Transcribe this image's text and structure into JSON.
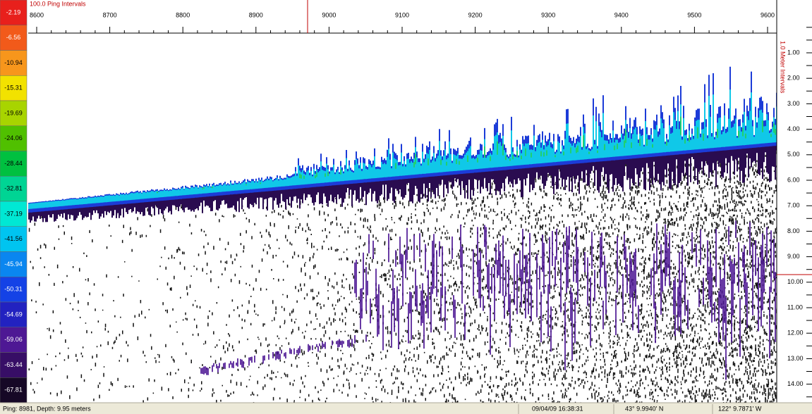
{
  "color_scale": [
    {
      "label": "-2.19",
      "color": "#e8201c"
    },
    {
      "label": "-6.56",
      "color": "#f25a1a"
    },
    {
      "label": "-10.94",
      "color": "#f7961c"
    },
    {
      "label": "-15.31",
      "color": "#f2e200"
    },
    {
      "label": "-19.69",
      "color": "#a8d400"
    },
    {
      "label": "-24.06",
      "color": "#50c000"
    },
    {
      "label": "-28.44",
      "color": "#00c040"
    },
    {
      "label": "-32.81",
      "color": "#00d494"
    },
    {
      "label": "-37.19",
      "color": "#00e8d4"
    },
    {
      "label": "-41.56",
      "color": "#00c4f0"
    },
    {
      "label": "-45.94",
      "color": "#0a86f0"
    },
    {
      "label": "-50.31",
      "color": "#1442e6"
    },
    {
      "label": "-54.69",
      "color": "#2222c0"
    },
    {
      "label": "-59.06",
      "color": "#4e1894"
    },
    {
      "label": "-63.44",
      "color": "#370e66"
    },
    {
      "label": "-67.81",
      "color": "#160826"
    }
  ],
  "ping_axis": {
    "title": "100.0 Ping Intervals",
    "labels": [
      "8600",
      "8700",
      "8800",
      "8900",
      "9000",
      "9100",
      "9200",
      "9300",
      "9400",
      "9500",
      "9600"
    ]
  },
  "depth_axis": {
    "title": "1.0 Meter Intervals",
    "labels": [
      "1.00",
      "2.00",
      "3.00",
      "4.00",
      "5.00",
      "6.00",
      "7.00",
      "8.00",
      "9.00",
      "10.00",
      "11.00",
      "12.00",
      "13.00",
      "14.00"
    ]
  },
  "status_bar": {
    "ping_depth": "Ping: 8981, Depth: 9.95 meters",
    "datetime": "09/04/09 16:38:31",
    "latitude": "43° 9.9940' N",
    "longitude": "122° 9.7871' W"
  }
}
